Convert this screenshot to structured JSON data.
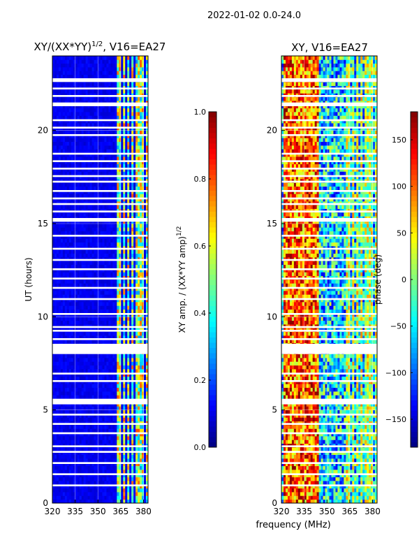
{
  "suptitle": "2022-01-02 0.0-24.0",
  "xlabel_shared": "frequency (MHz)",
  "chart_data": [
    {
      "type": "heatmap",
      "title": "XY/(XX*YY)",
      "title_superscript": "1/2",
      "title_suffix": ", V16=EA27",
      "xlabel": "frequency (MHz)",
      "ylabel": "UT (hours)",
      "xlim": [
        320,
        383
      ],
      "ylim": [
        0,
        24
      ],
      "xticks": [
        320,
        335,
        350,
        365,
        380
      ],
      "yticks": [
        0,
        5,
        10,
        15,
        20
      ],
      "colormap": "jet",
      "colorbar": {
        "label": "XY amp. / (XX*YY amp)",
        "label_superscript": "1/2",
        "range": [
          0.0,
          1.0
        ],
        "ticks": [
          "0.0",
          "0.2",
          "0.4",
          "0.6",
          "0.8",
          "1.0"
        ],
        "tick_values": [
          0.0,
          0.2,
          0.4,
          0.6,
          0.8,
          1.0
        ]
      }
    },
    {
      "type": "heatmap",
      "title": "XY, V16=EA27",
      "xlabel": "frequency (MHz)",
      "ylabel": "",
      "xlim": [
        320,
        383
      ],
      "ylim": [
        0,
        24
      ],
      "xticks": [
        320,
        335,
        350,
        365,
        380
      ],
      "yticks": [
        0,
        5,
        10,
        15,
        20
      ],
      "colormap": "jet",
      "colorbar": {
        "label": "phase (deg)",
        "range": [
          -180,
          180
        ],
        "ticks": [
          "−150",
          "−100",
          "−50",
          "0",
          "50",
          "100",
          "150"
        ],
        "tick_values": [
          -150,
          -100,
          -50,
          0,
          50,
          100,
          150
        ]
      }
    }
  ],
  "flagged_hour_ranges": [
    [
      0.9,
      1.0
    ],
    [
      1.5,
      1.6
    ],
    [
      2.1,
      2.2
    ],
    [
      2.7,
      2.8
    ],
    [
      3.0,
      3.1
    ],
    [
      3.7,
      3.8
    ],
    [
      4.2,
      4.3
    ],
    [
      4.7,
      4.8
    ],
    [
      5.3,
      5.6
    ],
    [
      6.5,
      6.6
    ],
    [
      6.9,
      7.0
    ],
    [
      8.0,
      8.55
    ],
    [
      8.75,
      8.85
    ],
    [
      9.2,
      9.3
    ],
    [
      9.4,
      9.5
    ],
    [
      10.1,
      10.2
    ],
    [
      10.9,
      11.0
    ],
    [
      11.5,
      11.6
    ],
    [
      12.0,
      12.1
    ],
    [
      12.5,
      12.6
    ],
    [
      13.0,
      13.1
    ],
    [
      13.6,
      13.7
    ],
    [
      14.3,
      14.4
    ],
    [
      15.1,
      15.3
    ],
    [
      15.6,
      15.7
    ],
    [
      16.0,
      16.1
    ],
    [
      16.3,
      16.4
    ],
    [
      16.7,
      16.8
    ],
    [
      17.2,
      17.3
    ],
    [
      17.5,
      17.6
    ],
    [
      17.9,
      18.0
    ],
    [
      18.3,
      18.4
    ],
    [
      18.7,
      18.8
    ],
    [
      19.7,
      19.8
    ],
    [
      20.1,
      20.2
    ],
    [
      20.5,
      20.6
    ],
    [
      21.3,
      21.5
    ],
    [
      21.8,
      21.9
    ],
    [
      22.2,
      22.3
    ],
    [
      22.6,
      22.8
    ]
  ],
  "rfi_bands_mhz": [
    [
      362,
      365
    ],
    [
      366,
      368
    ],
    [
      369,
      371
    ],
    [
      372,
      374
    ],
    [
      375,
      377
    ],
    [
      378,
      380
    ],
    [
      381,
      383
    ]
  ]
}
